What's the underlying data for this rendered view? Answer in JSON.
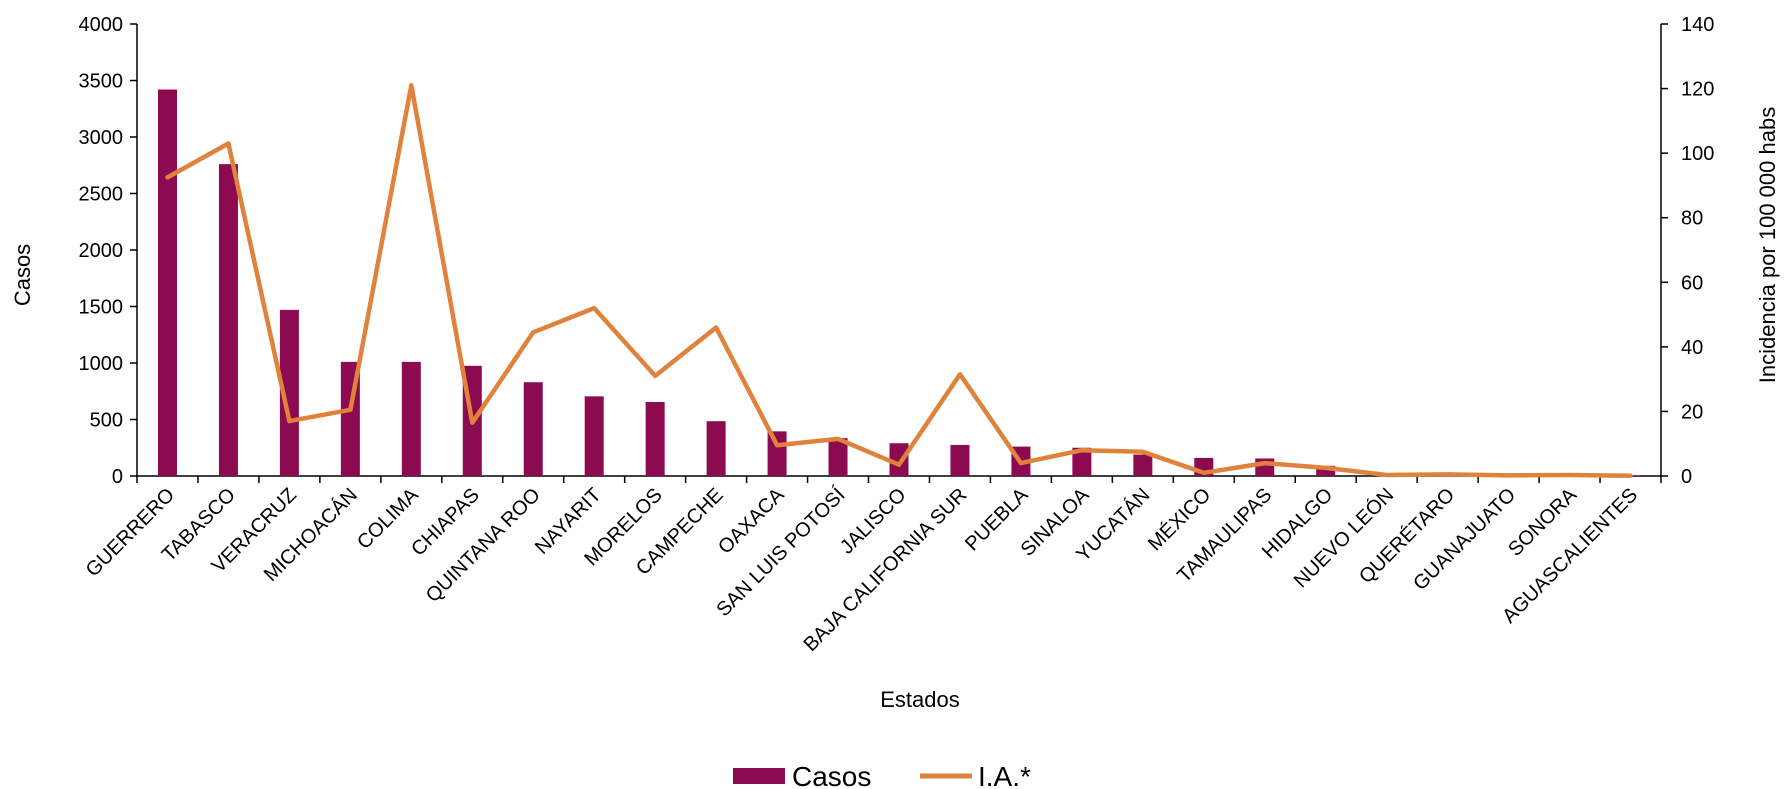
{
  "chart_data": {
    "type": "bar",
    "categories": [
      "GUERRERO",
      "TABASCO",
      "VERACRUZ",
      "MICHOACÁN",
      "COLIMA",
      "CHIAPAS",
      "QUINTANA ROO",
      "NAYARIT",
      "MORELOS",
      "CAMPECHE",
      "OAXACA",
      "SAN LUIS POTOSÍ",
      "JALISCO",
      "BAJA CALIFORNIA SUR",
      "PUEBLA",
      "SINALOA",
      "YUCATÁN",
      "MÉXICO",
      "TAMAULIPAS",
      "HIDALGO",
      "NUEVO LEÓN",
      "QUERÉTARO",
      "GUANAJUATO",
      "SONORA",
      "AGUASCALIENTES"
    ],
    "series": [
      {
        "name": "Casos",
        "type": "bar",
        "axis": "left",
        "color": "#8B0A50",
        "values": [
          3420,
          2760,
          1470,
          1010,
          1010,
          975,
          830,
          705,
          655,
          485,
          395,
          335,
          290,
          275,
          260,
          250,
          190,
          160,
          155,
          90,
          15,
          10,
          8,
          6,
          4
        ]
      },
      {
        "name": "I.A.*",
        "type": "line",
        "axis": "right",
        "color": "#E0823C",
        "values": [
          92.5,
          103,
          17,
          20.5,
          121,
          16.5,
          44.5,
          52,
          31,
          46,
          9.5,
          11.5,
          3.5,
          31.5,
          4,
          8,
          7.5,
          1,
          4,
          2.5,
          0.3,
          0.5,
          0.2,
          0.3,
          0.1
        ]
      }
    ],
    "xlabel": "Estados",
    "ylabel": "Casos",
    "y2label": "Incidencia por 100 000 habs",
    "ylim": [
      0,
      4000
    ],
    "y2lim": [
      0,
      140
    ],
    "yticks": [
      "0",
      "500",
      "1000",
      "1500",
      "2000",
      "2500",
      "3000",
      "3500",
      "4000"
    ],
    "y2ticks": [
      "0",
      "20",
      "40",
      "60",
      "80",
      "100",
      "120",
      "140"
    ],
    "grid": false,
    "legend_position": "bottom"
  }
}
